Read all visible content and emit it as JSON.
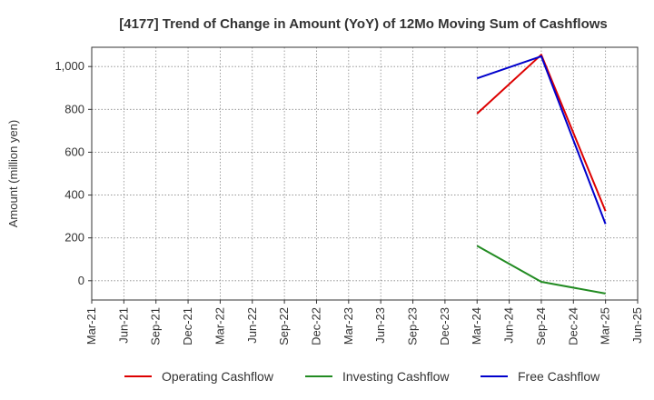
{
  "chart_data": {
    "type": "line",
    "title": "[4177]  Trend of Change in Amount (YoY) of 12Mo Moving Sum of Cashflows",
    "xlabel": "",
    "ylabel": "Amount (million yen)",
    "x_ticks": [
      "Mar-21",
      "Jun-21",
      "Sep-21",
      "Dec-21",
      "Mar-22",
      "Jun-22",
      "Sep-22",
      "Dec-22",
      "Mar-23",
      "Jun-23",
      "Sep-23",
      "Dec-23",
      "Mar-24",
      "Jun-24",
      "Sep-24",
      "Dec-24",
      "Mar-25",
      "Jun-25"
    ],
    "y_ticks": [
      0,
      200,
      400,
      600,
      800,
      1000
    ],
    "y_tick_labels": [
      "0",
      "200",
      "400",
      "600",
      "800",
      "1,000"
    ],
    "ylim": [
      -90,
      1090
    ],
    "grid": true,
    "legend_position": "bottom",
    "series": [
      {
        "name": "Operating Cashflow",
        "color": "#dd0000",
        "x": [
          "Mar-24",
          "Sep-24",
          "Mar-25"
        ],
        "values": [
          780,
          1055,
          325
        ]
      },
      {
        "name": "Investing Cashflow",
        "color": "#228b22",
        "x": [
          "Mar-24",
          "Sep-24",
          "Mar-25"
        ],
        "values": [
          163,
          -5,
          -60
        ]
      },
      {
        "name": "Free Cashflow",
        "color": "#0000cc",
        "x": [
          "Mar-24",
          "Sep-24",
          "Mar-25"
        ],
        "values": [
          945,
          1048,
          265
        ]
      }
    ]
  }
}
